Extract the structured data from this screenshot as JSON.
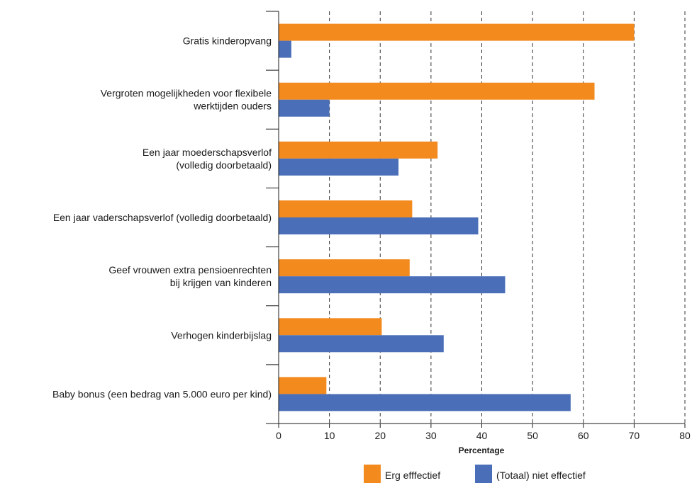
{
  "chart_data": {
    "type": "bar",
    "orientation": "horizontal",
    "categories": [
      [
        "Gratis kinderopvang"
      ],
      [
        "Vergroten mogelijkheden voor flexibele",
        "werktijden ouders"
      ],
      [
        "Een jaar moederschapsverlof",
        "(volledig doorbetaald)"
      ],
      [
        "Een jaar vaderschapsverlof (volledig doorbetaald)"
      ],
      [
        "Geef vrouwen extra pensioenrechten",
        "bij krijgen van kinderen"
      ],
      [
        "Verhogen kinderbijslag"
      ],
      [
        "Baby bonus (een bedrag van 5.000 euro per kind)"
      ]
    ],
    "series": [
      {
        "name": "Erg efffectief",
        "color": "#f28a1e",
        "values": [
          70,
          62.2,
          31.3,
          26.3,
          25.8,
          20.3,
          9.4
        ]
      },
      {
        "name": "(Totaal) niet effectief",
        "color": "#4a6fb8",
        "values": [
          2.5,
          10,
          23.6,
          39.3,
          44.6,
          32.5,
          57.5
        ]
      }
    ],
    "xlabel": "Percentage",
    "xlim": [
      0,
      80
    ],
    "xticks": [
      "0",
      "10",
      "20",
      "30",
      "40",
      "50",
      "60",
      "70",
      "80"
    ],
    "grid": "vertical dashed",
    "legend_position": "bottom"
  }
}
